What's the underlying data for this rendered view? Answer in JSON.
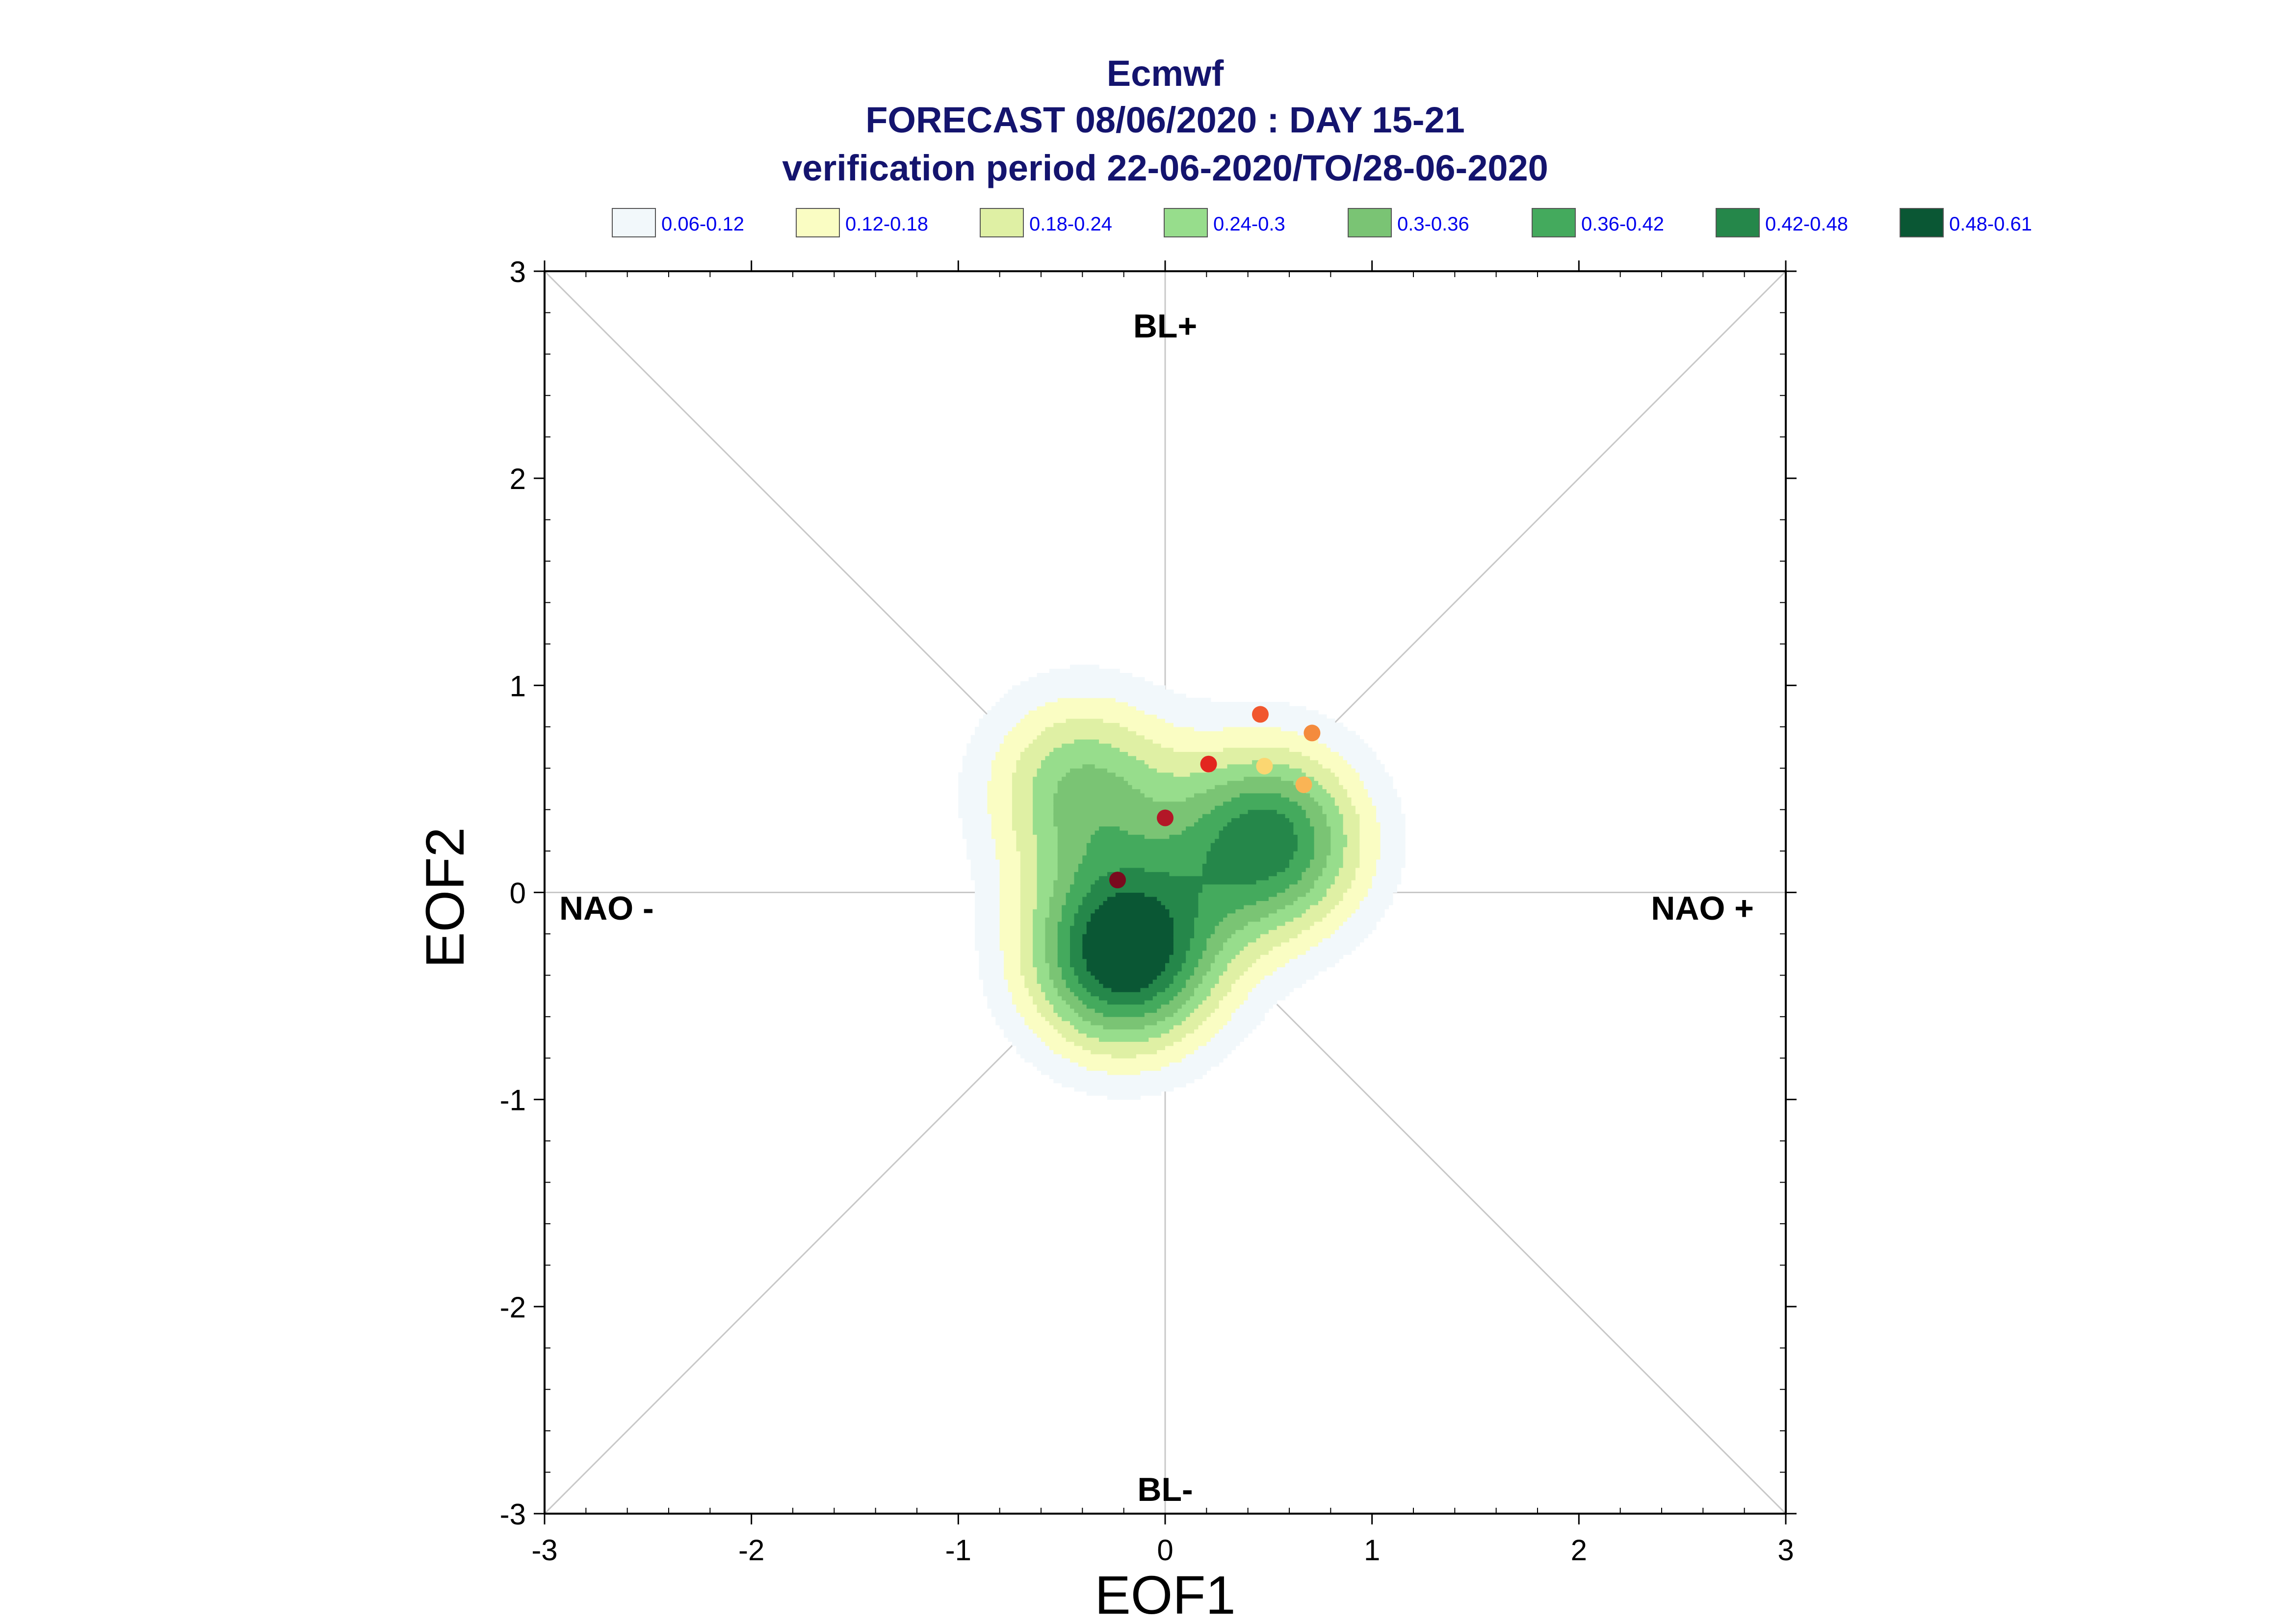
{
  "chart_data": {
    "type": "contour",
    "title_lines": [
      "Ecmwf",
      "FORECAST 08/06/2020 : DAY 15-21",
      "verification period 22-06-2020/TO/28-06-2020"
    ],
    "xlabel": "EOF1",
    "ylabel": "EOF2",
    "xlim": [
      -3,
      3
    ],
    "ylim": [
      -3,
      3
    ],
    "xticks": [
      "-3",
      "-2",
      "-1",
      "0",
      "1",
      "2",
      "3"
    ],
    "yticks": [
      "-3",
      "-2",
      "-1",
      "0",
      "1",
      "2",
      "3"
    ],
    "grid": false,
    "regime_labels": {
      "top": "BL+",
      "bottom": "BL-",
      "left": "NAO -",
      "right": "NAO +"
    },
    "legend": {
      "placement": "top",
      "entries": [
        {
          "label": "0.06-0.12",
          "color": "#f2f8fb"
        },
        {
          "label": "0.12-0.18",
          "color": "#fafdc3"
        },
        {
          "label": "0.18-0.24",
          "color": "#dff0a4"
        },
        {
          "label": "0.24-0.3",
          "color": "#97dd8c"
        },
        {
          "label": "0.3-0.36",
          "color": "#7ac474"
        },
        {
          "label": "0.36-0.42",
          "color": "#44aa5d"
        },
        {
          "label": "0.42-0.48",
          "color": "#25874a"
        },
        {
          "label": "0.48-0.61",
          "color": "#0a5734"
        }
      ]
    },
    "density_centers": [
      {
        "x": -0.2,
        "y": -0.3,
        "level": 0.55
      },
      {
        "x": 0.5,
        "y": 0.25,
        "level": 0.45
      },
      {
        "x": -0.4,
        "y": 0.5,
        "level": 0.3
      }
    ],
    "points": [
      {
        "x": -0.23,
        "y": 0.06,
        "color": "#7a0a1e"
      },
      {
        "x": 0.0,
        "y": 0.36,
        "color": "#b31727"
      },
      {
        "x": 0.21,
        "y": 0.62,
        "color": "#e3261f"
      },
      {
        "x": 0.46,
        "y": 0.86,
        "color": "#f1572e"
      },
      {
        "x": 0.71,
        "y": 0.77,
        "color": "#f48b3d"
      },
      {
        "x": 0.48,
        "y": 0.61,
        "color": "#fbd671"
      },
      {
        "x": 0.67,
        "y": 0.52,
        "color": "#fab455"
      }
    ]
  }
}
